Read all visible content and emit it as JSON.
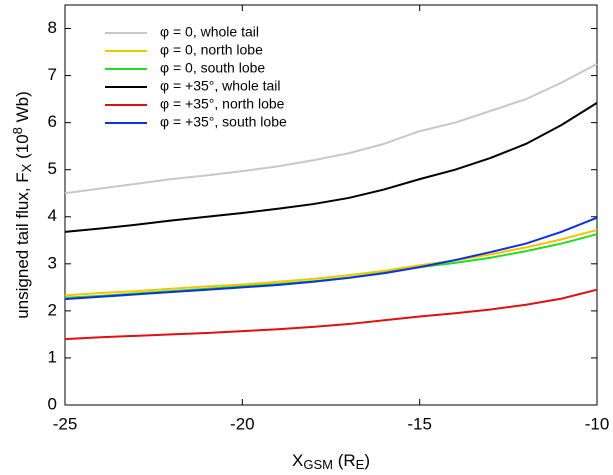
{
  "chart_data": {
    "type": "line",
    "x": [
      -25,
      -24,
      -23,
      -22,
      -21,
      -20,
      -19,
      -18,
      -17,
      -16,
      -15,
      -14,
      -13,
      -12,
      -11,
      -10
    ],
    "xlim": [
      -25,
      -10
    ],
    "xticks": [
      -25,
      -20,
      -15,
      -10
    ],
    "ylim": [
      0,
      8.5
    ],
    "yticks": [
      0,
      1,
      2,
      3,
      4,
      5,
      6,
      7,
      8
    ],
    "xlabel": [
      {
        "t": "X"
      },
      {
        "sub": "GSM"
      },
      {
        "t": " (R"
      },
      {
        "sub": "E"
      },
      {
        "t": ")"
      }
    ],
    "ylabel": [
      {
        "t": "unsigned tail flux, F"
      },
      {
        "sub": "X"
      },
      {
        "t": "  (10"
      },
      {
        "sup": "8"
      },
      {
        "t": " Wb)"
      }
    ],
    "legend": "upper left",
    "series": [
      {
        "name": "φ = 0, whole tail",
        "color": "#c8c8c8",
        "values": [
          4.5,
          4.6,
          4.7,
          4.8,
          4.88,
          4.97,
          5.07,
          5.2,
          5.35,
          5.55,
          5.82,
          6.0,
          6.25,
          6.5,
          6.85,
          7.25
        ]
      },
      {
        "name": "φ = 0, north lobe",
        "color": "#f5c400",
        "values": [
          2.33,
          2.38,
          2.42,
          2.47,
          2.52,
          2.56,
          2.62,
          2.68,
          2.76,
          2.85,
          2.97,
          3.07,
          3.2,
          3.35,
          3.52,
          3.72
        ]
      },
      {
        "name": "φ = 0, south lobe",
        "color": "#22dd22",
        "values": [
          2.28,
          2.32,
          2.37,
          2.42,
          2.47,
          2.52,
          2.57,
          2.63,
          2.71,
          2.81,
          2.93,
          3.02,
          3.13,
          3.27,
          3.43,
          3.63
        ]
      },
      {
        "name": "φ = +35°, whole tail",
        "color": "#000000",
        "values": [
          3.68,
          3.75,
          3.83,
          3.92,
          4.0,
          4.08,
          4.17,
          4.27,
          4.4,
          4.58,
          4.8,
          5.0,
          5.25,
          5.55,
          5.95,
          6.42
        ]
      },
      {
        "name": "φ = +35°, north lobe",
        "color": "#e01010",
        "values": [
          1.4,
          1.44,
          1.47,
          1.5,
          1.53,
          1.57,
          1.61,
          1.66,
          1.72,
          1.8,
          1.88,
          1.95,
          2.03,
          2.13,
          2.26,
          2.45
        ]
      },
      {
        "name": "φ = +35°, south lobe",
        "color": "#1030e0",
        "values": [
          2.25,
          2.3,
          2.35,
          2.4,
          2.45,
          2.5,
          2.55,
          2.62,
          2.7,
          2.8,
          2.93,
          3.08,
          3.25,
          3.43,
          3.68,
          3.98
        ]
      }
    ]
  }
}
